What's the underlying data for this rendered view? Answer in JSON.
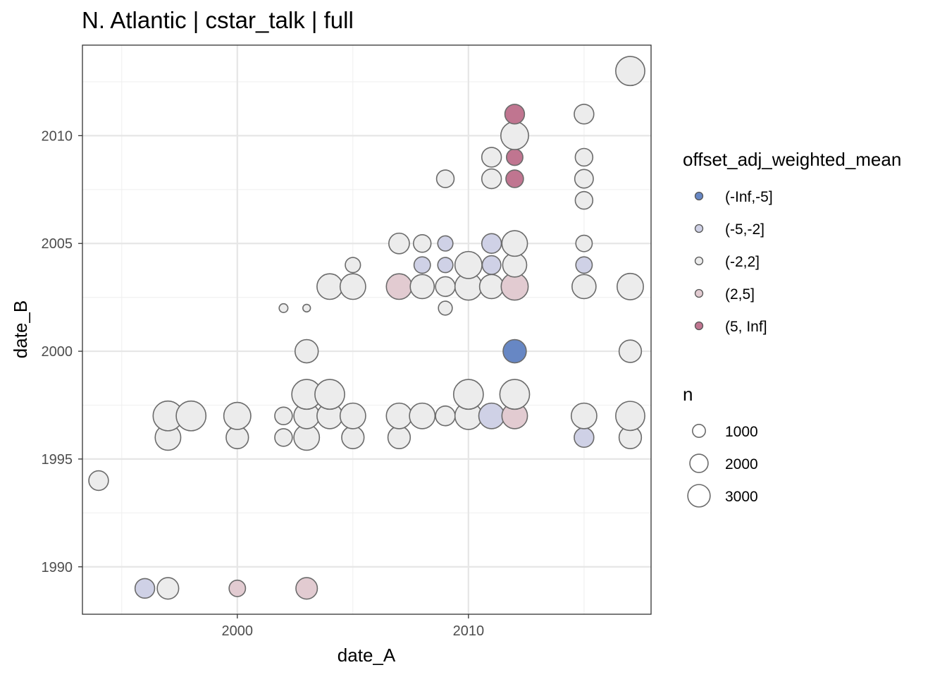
{
  "chart_data": {
    "type": "scatter",
    "title": "N. Atlantic | cstar_talk | full",
    "xlabel": "date_A",
    "ylabel": "date_B",
    "xlim": [
      1993.3,
      2017.9
    ],
    "ylim": [
      1987.8,
      2014.2
    ],
    "x_ticks": [
      2000,
      2010
    ],
    "y_ticks": [
      1990,
      1995,
      2000,
      2005,
      2010
    ],
    "grid": true,
    "legend_position": "right",
    "color_legend": {
      "title": "offset_adj_weighted_mean",
      "entries": [
        {
          "label": "(-Inf,-5]",
          "color": "#6787c4"
        },
        {
          "label": "(-5,-2]",
          "color": "#cfd1e6"
        },
        {
          "label": "(-2,2]",
          "color": "#ececec"
        },
        {
          "label": "(2,5]",
          "color": "#e2cbd1"
        },
        {
          "label": "(5, Inf]",
          "color": "#c07590"
        }
      ]
    },
    "size_legend": {
      "title": "n",
      "entries": [
        {
          "label": "1000",
          "value": 1000
        },
        {
          "label": "2000",
          "value": 2000
        },
        {
          "label": "3000",
          "value": 3000
        }
      ]
    },
    "points": [
      {
        "x": 1994,
        "y": 1994,
        "n": 1000,
        "c": "(-2,2]"
      },
      {
        "x": 1996,
        "y": 1989,
        "n": 1000,
        "c": "(-5,-2]"
      },
      {
        "x": 1997,
        "y": 1989,
        "n": 1200,
        "c": "(-2,2]"
      },
      {
        "x": 2000,
        "y": 1989,
        "n": 700,
        "c": "(2,5]"
      },
      {
        "x": 2003,
        "y": 1989,
        "n": 1200,
        "c": "(2,5]"
      },
      {
        "x": 1997,
        "y": 1996,
        "n": 1700,
        "c": "(-2,2]"
      },
      {
        "x": 2000,
        "y": 1996,
        "n": 1300,
        "c": "(-2,2]"
      },
      {
        "x": 2002,
        "y": 1996,
        "n": 800,
        "c": "(-2,2]"
      },
      {
        "x": 2003,
        "y": 1996,
        "n": 1700,
        "c": "(-2,2]"
      },
      {
        "x": 2005,
        "y": 1996,
        "n": 1300,
        "c": "(-2,2]"
      },
      {
        "x": 2007,
        "y": 1996,
        "n": 1300,
        "c": "(-2,2]"
      },
      {
        "x": 2015,
        "y": 1996,
        "n": 1000,
        "c": "(-5,-2]"
      },
      {
        "x": 2017,
        "y": 1996,
        "n": 1300,
        "c": "(-2,2]"
      },
      {
        "x": 1997,
        "y": 1997,
        "n": 2300,
        "c": "(-2,2]"
      },
      {
        "x": 1998,
        "y": 1997,
        "n": 2300,
        "c": "(-2,2]"
      },
      {
        "x": 2000,
        "y": 1997,
        "n": 1900,
        "c": "(-2,2]"
      },
      {
        "x": 2002,
        "y": 1997,
        "n": 800,
        "c": "(-2,2]"
      },
      {
        "x": 2003,
        "y": 1997,
        "n": 1700,
        "c": "(-2,2]"
      },
      {
        "x": 2004,
        "y": 1997,
        "n": 1700,
        "c": "(-2,2]"
      },
      {
        "x": 2005,
        "y": 1997,
        "n": 1700,
        "c": "(-2,2]"
      },
      {
        "x": 2007,
        "y": 1997,
        "n": 1700,
        "c": "(-2,2]"
      },
      {
        "x": 2008,
        "y": 1997,
        "n": 1700,
        "c": "(-2,2]"
      },
      {
        "x": 2009,
        "y": 1997,
        "n": 1000,
        "c": "(-2,2]"
      },
      {
        "x": 2010,
        "y": 1997,
        "n": 1900,
        "c": "(-2,2]"
      },
      {
        "x": 2011,
        "y": 1997,
        "n": 1700,
        "c": "(-5,-2]"
      },
      {
        "x": 2012,
        "y": 1997,
        "n": 1700,
        "c": "(2,5]"
      },
      {
        "x": 2015,
        "y": 1997,
        "n": 1700,
        "c": "(-2,2]"
      },
      {
        "x": 2017,
        "y": 1997,
        "n": 2200,
        "c": "(-2,2]"
      },
      {
        "x": 2003,
        "y": 1998,
        "n": 2300,
        "c": "(-2,2]"
      },
      {
        "x": 2004,
        "y": 1998,
        "n": 2300,
        "c": "(-2,2]"
      },
      {
        "x": 2010,
        "y": 1998,
        "n": 2300,
        "c": "(-2,2]"
      },
      {
        "x": 2012,
        "y": 1998,
        "n": 2300,
        "c": "(-2,2]"
      },
      {
        "x": 2003,
        "y": 2000,
        "n": 1400,
        "c": "(-2,2]"
      },
      {
        "x": 2012,
        "y": 2000,
        "n": 1400,
        "c": "(-Inf,-5]"
      },
      {
        "x": 2017,
        "y": 2000,
        "n": 1300,
        "c": "(-2,2]"
      },
      {
        "x": 2002,
        "y": 2002,
        "n": 200,
        "c": "(-2,2]"
      },
      {
        "x": 2003,
        "y": 2002,
        "n": 150,
        "c": "(-2,2]"
      },
      {
        "x": 2009,
        "y": 2002,
        "n": 500,
        "c": "(-2,2]"
      },
      {
        "x": 2004,
        "y": 2003,
        "n": 1700,
        "c": "(-2,2]"
      },
      {
        "x": 2005,
        "y": 2003,
        "n": 1700,
        "c": "(-2,2]"
      },
      {
        "x": 2007,
        "y": 2003,
        "n": 1700,
        "c": "(2,5]"
      },
      {
        "x": 2008,
        "y": 2003,
        "n": 1500,
        "c": "(-2,2]"
      },
      {
        "x": 2009,
        "y": 2003,
        "n": 1000,
        "c": "(-2,2]"
      },
      {
        "x": 2010,
        "y": 2003,
        "n": 1900,
        "c": "(-2,2]"
      },
      {
        "x": 2011,
        "y": 2003,
        "n": 1500,
        "c": "(-2,2]"
      },
      {
        "x": 2012,
        "y": 2003,
        "n": 1900,
        "c": "(2,5]"
      },
      {
        "x": 2015,
        "y": 2003,
        "n": 1500,
        "c": "(-2,2]"
      },
      {
        "x": 2017,
        "y": 2003,
        "n": 1800,
        "c": "(-2,2]"
      },
      {
        "x": 2005,
        "y": 2004,
        "n": 600,
        "c": "(-2,2]"
      },
      {
        "x": 2008,
        "y": 2004,
        "n": 700,
        "c": "(-5,-2]"
      },
      {
        "x": 2009,
        "y": 2004,
        "n": 600,
        "c": "(-5,-2]"
      },
      {
        "x": 2010,
        "y": 2004,
        "n": 1900,
        "c": "(-2,2]"
      },
      {
        "x": 2011,
        "y": 2004,
        "n": 900,
        "c": "(-5,-2]"
      },
      {
        "x": 2012,
        "y": 2004,
        "n": 1500,
        "c": "(-2,2]"
      },
      {
        "x": 2015,
        "y": 2004,
        "n": 700,
        "c": "(-5,-2]"
      },
      {
        "x": 2007,
        "y": 2005,
        "n": 1100,
        "c": "(-2,2]"
      },
      {
        "x": 2008,
        "y": 2005,
        "n": 800,
        "c": "(-2,2]"
      },
      {
        "x": 2009,
        "y": 2005,
        "n": 600,
        "c": "(-5,-2]"
      },
      {
        "x": 2011,
        "y": 2005,
        "n": 1000,
        "c": "(-5,-2]"
      },
      {
        "x": 2012,
        "y": 2005,
        "n": 1700,
        "c": "(-2,2]"
      },
      {
        "x": 2015,
        "y": 2005,
        "n": 700,
        "c": "(-2,2]"
      },
      {
        "x": 2015,
        "y": 2007,
        "n": 800,
        "c": "(-2,2]"
      },
      {
        "x": 2009,
        "y": 2008,
        "n": 800,
        "c": "(-2,2]"
      },
      {
        "x": 2011,
        "y": 2008,
        "n": 1000,
        "c": "(-2,2]"
      },
      {
        "x": 2012,
        "y": 2008,
        "n": 800,
        "c": "(5, Inf]"
      },
      {
        "x": 2015,
        "y": 2008,
        "n": 900,
        "c": "(-2,2]"
      },
      {
        "x": 2011,
        "y": 2009,
        "n": 1000,
        "c": "(-2,2]"
      },
      {
        "x": 2012,
        "y": 2009,
        "n": 700,
        "c": "(5, Inf]"
      },
      {
        "x": 2015,
        "y": 2009,
        "n": 800,
        "c": "(-2,2]"
      },
      {
        "x": 2012,
        "y": 2010,
        "n": 2000,
        "c": "(-2,2]"
      },
      {
        "x": 2012,
        "y": 2011,
        "n": 1000,
        "c": "(5, Inf]"
      },
      {
        "x": 2015,
        "y": 2011,
        "n": 1000,
        "c": "(-2,2]"
      },
      {
        "x": 2017,
        "y": 2013,
        "n": 2200,
        "c": "(-2,2]"
      }
    ]
  }
}
